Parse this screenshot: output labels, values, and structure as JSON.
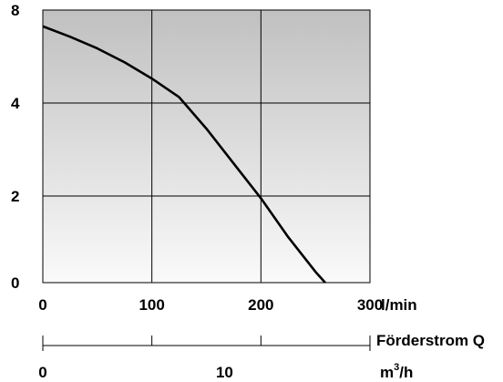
{
  "chart_data": {
    "type": "line",
    "y_ticks": [
      {
        "label": "8",
        "value": 8
      },
      {
        "label": "4",
        "value": 4
      },
      {
        "label": "2",
        "value": 2
      },
      {
        "label": "0",
        "value": 0
      }
    ],
    "x_ticks": [
      {
        "label": "0",
        "value": 0
      },
      {
        "label": "100",
        "value": 100
      },
      {
        "label": "200",
        "value": 200
      },
      {
        "label": "300",
        "value": 300
      }
    ],
    "xlim": [
      0,
      300
    ],
    "x_unit": "l/min",
    "flow_label": "Förderstrom Q",
    "secondary_axis": {
      "unit_base": "m",
      "unit_sup": "3",
      "unit_tail": "/h",
      "ticks": [
        {
          "label": "0",
          "value": 0
        },
        {
          "label": "10",
          "value": 10
        }
      ],
      "minor_ticks": [
        6,
        12
      ]
    },
    "grid": true,
    "series": [
      {
        "x": [
          0,
          25,
          50,
          75,
          100,
          125,
          150,
          175,
          200,
          225,
          250,
          259
        ],
        "y": [
          7.3,
          6.85,
          6.35,
          5.75,
          5.05,
          4.25,
          3.45,
          2.7,
          1.95,
          1.05,
          0.25,
          0
        ]
      }
    ],
    "colors": {
      "line": "#000000",
      "grid": "#000000",
      "fill_top": "#c0c0c0",
      "fill_bottom": "#fafafa"
    }
  }
}
